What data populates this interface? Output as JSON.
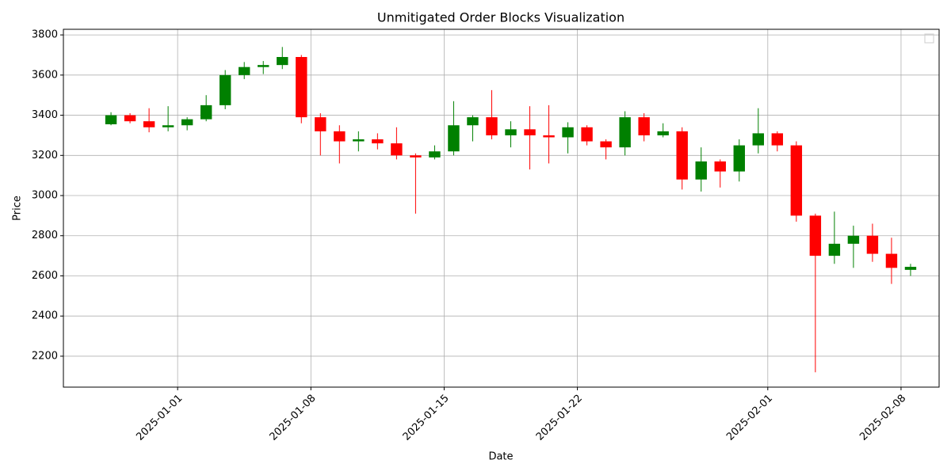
{
  "chart_data": {
    "type": "candlestick",
    "title": "Unmitigated Order Blocks Visualization",
    "x_label": "Date",
    "y_label": "Price",
    "x": [
      "2024-12-28",
      "2024-12-29",
      "2024-12-30",
      "2024-12-31",
      "2025-01-01",
      "2025-01-02",
      "2025-01-03",
      "2025-01-04",
      "2025-01-05",
      "2025-01-06",
      "2025-01-07",
      "2025-01-08",
      "2025-01-09",
      "2025-01-10",
      "2025-01-11",
      "2025-01-12",
      "2025-01-13",
      "2025-01-14",
      "2025-01-15",
      "2025-01-16",
      "2025-01-17",
      "2025-01-18",
      "2025-01-19",
      "2025-01-20",
      "2025-01-21",
      "2025-01-22",
      "2025-01-23",
      "2025-01-24",
      "2025-01-25",
      "2025-01-26",
      "2025-01-27",
      "2025-01-28",
      "2025-01-29",
      "2025-01-30",
      "2025-01-31",
      "2025-02-01",
      "2025-02-02",
      "2025-02-03",
      "2025-02-04",
      "2025-02-05",
      "2025-02-06",
      "2025-02-07",
      "2025-02-08"
    ],
    "open": [
      3355,
      3400,
      3370,
      3340,
      3350,
      3380,
      3450,
      3600,
      3640,
      3650,
      3690,
      3390,
      3320,
      3270,
      3280,
      3260,
      3200,
      3190,
      3220,
      3350,
      3390,
      3300,
      3330,
      3300,
      3290,
      3340,
      3270,
      3240,
      3390,
      3300,
      3320,
      3080,
      3170,
      3120,
      3250,
      3310,
      3250,
      2900,
      2700,
      2760,
      2800,
      2710,
      2630
    ],
    "high": [
      3415,
      3410,
      3435,
      3445,
      3390,
      3500,
      3625,
      3665,
      3670,
      3740,
      3700,
      3410,
      3350,
      3320,
      3310,
      3340,
      3210,
      3250,
      3470,
      3400,
      3525,
      3370,
      3445,
      3450,
      3365,
      3350,
      3280,
      3420,
      3410,
      3360,
      3340,
      3240,
      3180,
      3280,
      3435,
      3320,
      3270,
      2910,
      2920,
      2850,
      2860,
      2790,
      2660
    ],
    "low": [
      3350,
      3360,
      3315,
      3320,
      3325,
      3370,
      3430,
      3580,
      3605,
      3630,
      3360,
      3200,
      3160,
      3220,
      3230,
      3180,
      2910,
      3180,
      3200,
      3270,
      3280,
      3240,
      3130,
      3160,
      3210,
      3250,
      3180,
      3200,
      3270,
      3290,
      3030,
      3020,
      3040,
      3070,
      3210,
      3220,
      2870,
      2120,
      2660,
      2640,
      2670,
      2560,
      2600
    ],
    "close": [
      3400,
      3370,
      3340,
      3350,
      3380,
      3450,
      3600,
      3640,
      3650,
      3690,
      3390,
      3320,
      3270,
      3280,
      3260,
      3200,
      3190,
      3220,
      3350,
      3390,
      3300,
      3330,
      3300,
      3290,
      3340,
      3270,
      3240,
      3390,
      3300,
      3320,
      3080,
      3170,
      3120,
      3250,
      3310,
      3250,
      2900,
      2700,
      2760,
      2800,
      2710,
      2640,
      2645
    ],
    "up_color": "#008000",
    "down_color": "#ff0000",
    "xlim": [
      "2024-12-26",
      "2025-02-10"
    ],
    "xticks": [
      "2025-01-01",
      "2025-01-08",
      "2025-01-15",
      "2025-01-22",
      "2025-02-01",
      "2025-02-08"
    ],
    "ylim": [
      2046,
      3828
    ],
    "yticks": [
      2200,
      2400,
      2600,
      2800,
      3000,
      3200,
      3400,
      3600,
      3800
    ],
    "grid": true
  }
}
